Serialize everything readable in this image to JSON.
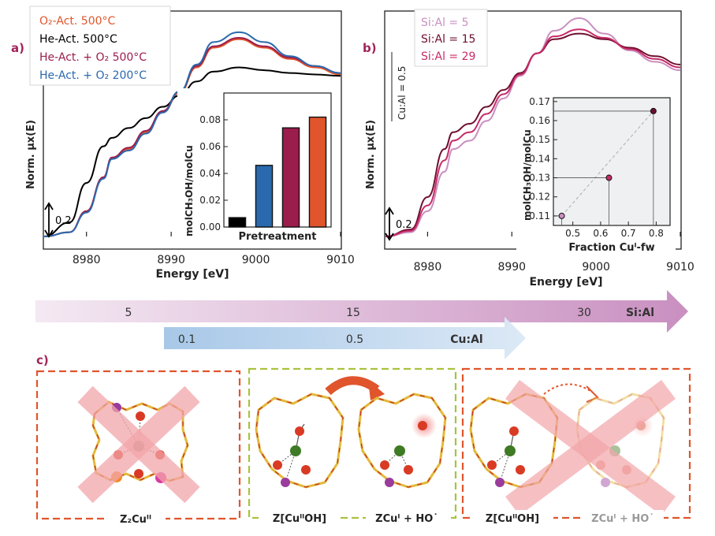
{
  "colors": {
    "o2_act_500": "#e0552c",
    "he_act_500": "#000000",
    "he_o2_500": "#9b1d4c",
    "he_o2_200": "#2a69ad",
    "sial_5": "#c98fc0",
    "sial_15": "#6f0f2e",
    "sial_29": "#c72b67",
    "panel_label": "#a3245a",
    "dash_red": "#e0552c",
    "dash_green": "#a9c23f"
  },
  "panel_a": {
    "label": "a)",
    "ylabel": "Norm. μx(E)",
    "xlabel": "Energy [eV]",
    "xticks": [
      "8980",
      "8990",
      "9000",
      "9010"
    ],
    "scale_label": "0.2",
    "legend": [
      "O₂-Act. 500°C",
      "He-Act. 500°C",
      "He-Act. + O₂ 500°C",
      "He-Act. + O₂ 200°C"
    ]
  },
  "panel_b": {
    "label": "b)",
    "ylabel": "Norm. μx(E)",
    "xlabel": "Energy [eV]",
    "xticks": [
      "8980",
      "8990",
      "9000",
      "9010"
    ],
    "scale_label": "0.2",
    "side_label": "Cu:Al = 0.5",
    "legend": [
      "Si:Al = 5",
      "Si:Al = 15",
      "Si:Al = 29"
    ]
  },
  "panel_c": {
    "label": "c)",
    "box1_label": "Z₂Cuᴵᴵ",
    "box2_label_a": "Z[CuᴵᴵOH]",
    "box2_label_b": "ZCuᴵ + HO˙",
    "box3_label_a": "Z[CuᴵᴵOH]",
    "box3_label_b": "ZCuᴵ + HO˙"
  },
  "arrows": {
    "sial_label": "Si:Al",
    "sial_ticks": [
      "5",
      "15",
      "30"
    ],
    "cual_label": "Cu:Al",
    "cual_ticks": [
      "0.1",
      "0.5"
    ]
  },
  "chart_data": [
    {
      "type": "line",
      "title": "",
      "xlabel": "Energy [eV]",
      "ylabel": "Norm. μx(E)",
      "xlim": [
        8975,
        9010
      ],
      "x": [
        8975,
        8978,
        8980,
        8982,
        8983,
        8985,
        8987,
        8989,
        8991,
        8993,
        8995,
        8998,
        9001,
        9004,
        9007,
        9010
      ],
      "series": [
        {
          "name": "O₂-Act. 500°C",
          "values": [
            0.0,
            0.03,
            0.18,
            0.42,
            0.56,
            0.62,
            0.74,
            0.88,
            1.02,
            1.2,
            1.34,
            1.4,
            1.34,
            1.26,
            1.2,
            1.15
          ]
        },
        {
          "name": "He-Act. 500°C",
          "values": [
            0.0,
            0.1,
            0.38,
            0.64,
            0.7,
            0.77,
            0.84,
            0.92,
            1.0,
            1.1,
            1.17,
            1.2,
            1.18,
            1.16,
            1.15,
            1.14
          ]
        },
        {
          "name": "He-Act. + O₂ 500°C",
          "values": [
            0.0,
            0.03,
            0.18,
            0.42,
            0.56,
            0.63,
            0.75,
            0.89,
            1.03,
            1.21,
            1.35,
            1.41,
            1.35,
            1.27,
            1.21,
            1.16
          ]
        },
        {
          "name": "He-Act. + O₂ 200°C",
          "values": [
            0.0,
            0.03,
            0.17,
            0.41,
            0.55,
            0.61,
            0.73,
            0.88,
            1.03,
            1.22,
            1.38,
            1.45,
            1.38,
            1.28,
            1.21,
            1.16
          ]
        }
      ]
    },
    {
      "type": "bar",
      "title": "",
      "xlabel": "Pretreatment",
      "ylabel": "molCH₃OH/molCu",
      "ylim": [
        0,
        0.1
      ],
      "yticks": [
        "0.00",
        "0.02",
        "0.04",
        "0.06",
        "0.08"
      ],
      "categories": [
        "He-Act. 500°C",
        "He-Act. + O₂ 200°C",
        "He-Act. + O₂ 500°C",
        "O₂-Act. 500°C"
      ],
      "values": [
        0.007,
        0.046,
        0.074,
        0.082
      ]
    },
    {
      "type": "line",
      "title": "",
      "xlabel": "Energy [eV]",
      "ylabel": "Norm. μx(E)",
      "xlim": [
        8975,
        9010
      ],
      "x": [
        8975,
        8978,
        8980,
        8982,
        8983,
        8985,
        8987,
        8989,
        8991,
        8993,
        8995,
        8998,
        9001,
        9004,
        9007,
        9010
      ],
      "series": [
        {
          "name": "Si:Al = 5",
          "values": [
            0.0,
            0.03,
            0.18,
            0.46,
            0.62,
            0.68,
            0.82,
            0.98,
            1.14,
            1.3,
            1.46,
            1.55,
            1.44,
            1.32,
            1.24,
            1.18
          ]
        },
        {
          "name": "Si:Al = 15",
          "values": [
            0.0,
            0.05,
            0.28,
            0.62,
            0.74,
            0.8,
            0.92,
            1.04,
            1.16,
            1.3,
            1.4,
            1.44,
            1.4,
            1.34,
            1.28,
            1.22
          ]
        },
        {
          "name": "Si:Al = 29",
          "values": [
            0.0,
            0.04,
            0.22,
            0.54,
            0.68,
            0.74,
            0.87,
            1.01,
            1.15,
            1.3,
            1.42,
            1.47,
            1.41,
            1.33,
            1.26,
            1.2
          ]
        }
      ]
    },
    {
      "type": "scatter",
      "title": "",
      "xlabel": "Fraction Cuᴵ-fw",
      "ylabel": "molCH₃OH/molCu",
      "xlim": [
        0.43,
        0.85
      ],
      "ylim": [
        0.105,
        0.172
      ],
      "xticks": [
        "0.5",
        "0.6",
        "0.7",
        "0.8"
      ],
      "yticks": [
        "0.11",
        "0.12",
        "0.13",
        "0.14",
        "0.15",
        "0.16",
        "0.17"
      ],
      "points": [
        {
          "x": 0.46,
          "y": 0.11,
          "series": "Si:Al = 5"
        },
        {
          "x": 0.63,
          "y": 0.13,
          "series": "Si:Al = 15"
        },
        {
          "x": 0.79,
          "y": 0.165,
          "series": "Si:Al = 29"
        }
      ]
    }
  ]
}
